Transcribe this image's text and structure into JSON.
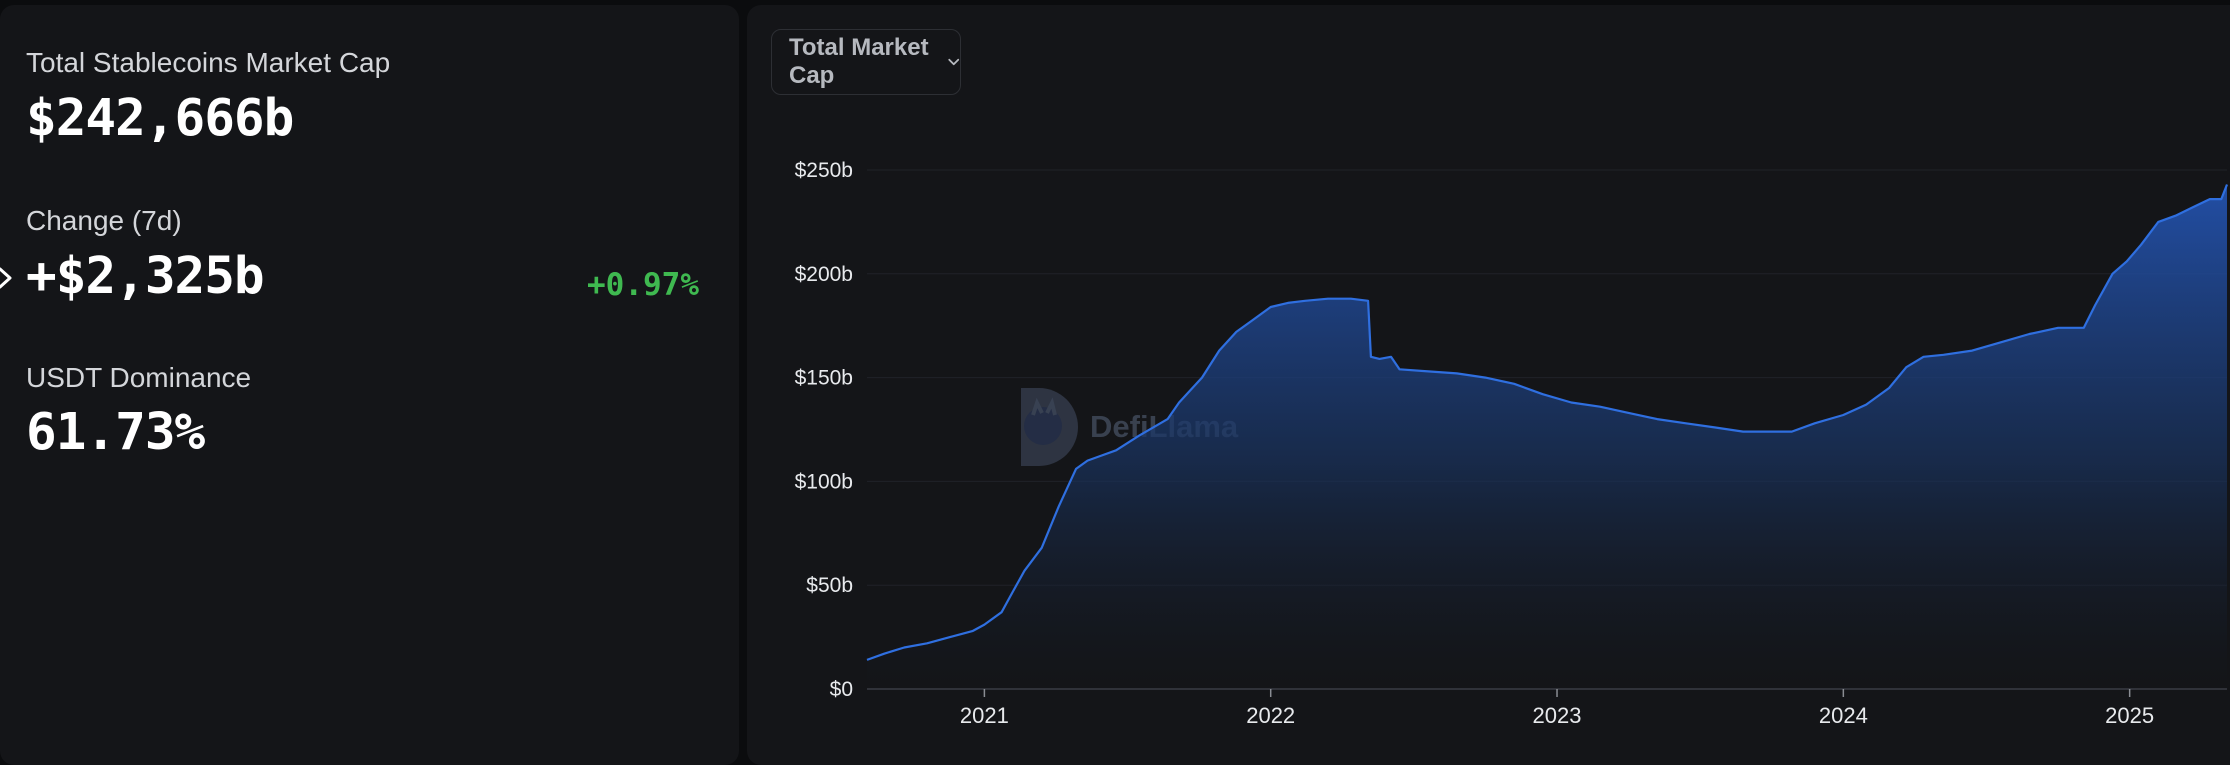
{
  "stats": {
    "market_cap": {
      "label": "Total Stablecoins Market Cap",
      "value": "$242,666b"
    },
    "change_7d": {
      "label": "Change (7d)",
      "value": "+$2,325b",
      "percent": "+0.97%"
    },
    "usdt_dominance": {
      "label": "USDT Dominance",
      "value": "61.73%"
    }
  },
  "dropdown": {
    "label": "Total Market Cap"
  },
  "watermark": "DefiLlama",
  "colors": {
    "line": "#2f6fe0",
    "positive": "#3fb950",
    "panel": "#141518"
  },
  "chart_data": {
    "type": "area",
    "title": "",
    "xlabel": "",
    "ylabel": "",
    "ylim": [
      0,
      250
    ],
    "yticks": [
      0,
      50,
      100,
      150,
      200,
      250
    ],
    "ytick_labels": [
      "$0",
      "$50b",
      "$100b",
      "$150b",
      "$200b",
      "$250b"
    ],
    "xticks": [
      2021,
      2022,
      2023,
      2024,
      2025
    ],
    "xtick_labels": [
      "2021",
      "2022",
      "2023",
      "2024",
      "2025"
    ],
    "xlim": [
      2020.59,
      2025.34
    ],
    "grid": true,
    "legend": "none",
    "series": [
      {
        "unit": "USD billions",
        "x": [
          2020.59,
          2020.65,
          2020.72,
          2020.8,
          2020.88,
          2020.96,
          2021.0,
          2021.06,
          2021.1,
          2021.14,
          2021.2,
          2021.26,
          2021.32,
          2021.36,
          2021.4,
          2021.46,
          2021.54,
          2021.64,
          2021.68,
          2021.76,
          2021.82,
          2021.88,
          2021.94,
          2022.0,
          2022.06,
          2022.12,
          2022.2,
          2022.28,
          2022.34,
          2022.35,
          2022.38,
          2022.42,
          2022.45,
          2022.55,
          2022.65,
          2022.75,
          2022.85,
          2022.95,
          2023.05,
          2023.15,
          2023.25,
          2023.35,
          2023.45,
          2023.55,
          2023.65,
          2023.75,
          2023.82,
          2023.9,
          2024.0,
          2024.08,
          2024.16,
          2024.22,
          2024.28,
          2024.35,
          2024.45,
          2024.55,
          2024.65,
          2024.75,
          2024.84,
          2024.88,
          2024.94,
          2024.99,
          2025.04,
          2025.1,
          2025.16,
          2025.22,
          2025.28,
          2025.32,
          2025.34
        ],
        "y": [
          14,
          17,
          20,
          22,
          25,
          28,
          31,
          37,
          47,
          57,
          68,
          88,
          106,
          110,
          112,
          115,
          122,
          130,
          138,
          150,
          163,
          172,
          178,
          184,
          186,
          187,
          188,
          188,
          187,
          160,
          159,
          160,
          154,
          153,
          152,
          150,
          147,
          142,
          138,
          136,
          133,
          130,
          128,
          126,
          124,
          124,
          124,
          128,
          132,
          137,
          145,
          155,
          160,
          161,
          163,
          167,
          171,
          174,
          174,
          185,
          200,
          206,
          214,
          225,
          228,
          232,
          236,
          236,
          243
        ]
      }
    ]
  }
}
